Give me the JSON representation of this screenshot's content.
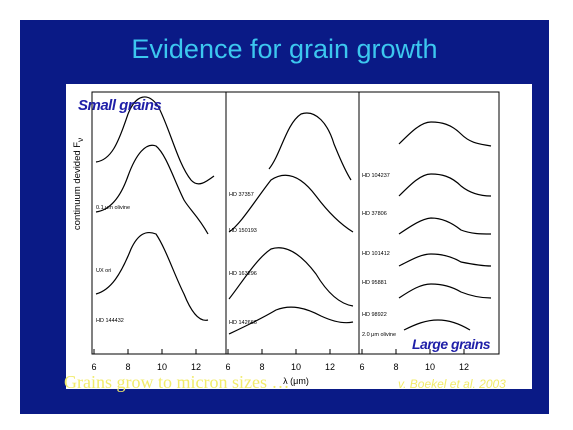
{
  "slide": {
    "title": "Evidence for grain growth",
    "bottom_text": "Grains grow to micron sizes …",
    "credit": "v. Boekel et al. 2003"
  },
  "figure": {
    "small_grains_label": "Small grains",
    "large_grains_label": "Large grains",
    "ylabel": "continuum devided F",
    "ylabel_sub": "ν",
    "xlabel": "λ (μm)",
    "x_ticks": [
      "6",
      "8",
      "10",
      "12"
    ],
    "x_ticks_right_panel": [
      "6",
      "8",
      "10",
      "12"
    ],
    "panel1_labels": [
      "0.1 μm olivine",
      "UX ori",
      "HD 144432"
    ],
    "panel2_labels": [
      "HD 37357",
      "HD 150193",
      "HD 163296",
      "HD 142666"
    ],
    "panel3_labels": [
      "HD 104237",
      "HD 37806",
      "HD 101412",
      "HD 95881",
      "HD 98922",
      "2.0 μm olivine"
    ]
  },
  "colors": {
    "background": "#0a1a86",
    "title": "#3cc7ef",
    "caption": "#f2ec6a",
    "grain_labels": "#1f1fa8"
  }
}
